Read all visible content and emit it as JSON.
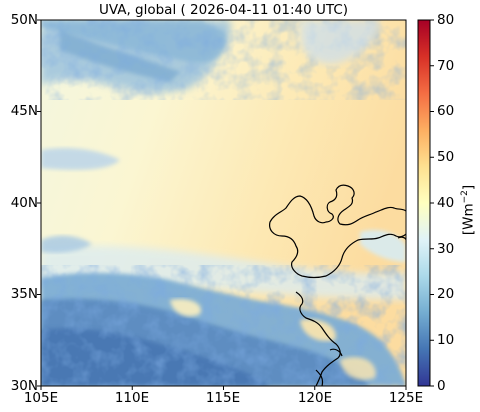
{
  "title": "UVA, global ( 2026-04-11 01:40 UTC)",
  "map": {
    "lon_range": [
      105,
      125
    ],
    "lat_range": [
      30,
      50
    ],
    "lon_ticks": [
      "105E",
      "110E",
      "115E",
      "120E",
      "125E"
    ],
    "lat_ticks": [
      "50N",
      "45N",
      "40N",
      "35N",
      "30N"
    ],
    "coastline_color": "#000000"
  },
  "colorbar": {
    "unit_label": "[Wm",
    "unit_exp": "−2",
    "unit_close": "]",
    "min": 0,
    "max": 80,
    "tick_labels": [
      "80",
      "70",
      "60",
      "50",
      "40",
      "30",
      "20",
      "10",
      "0"
    ],
    "colormap": "RdYlBu_r",
    "stops": [
      "#313695",
      "#4575b4",
      "#74add1",
      "#abd9e9",
      "#e0f3f8",
      "#ffffbf",
      "#fee090",
      "#fdae61",
      "#f46d43",
      "#d73027",
      "#a50026"
    ]
  }
}
